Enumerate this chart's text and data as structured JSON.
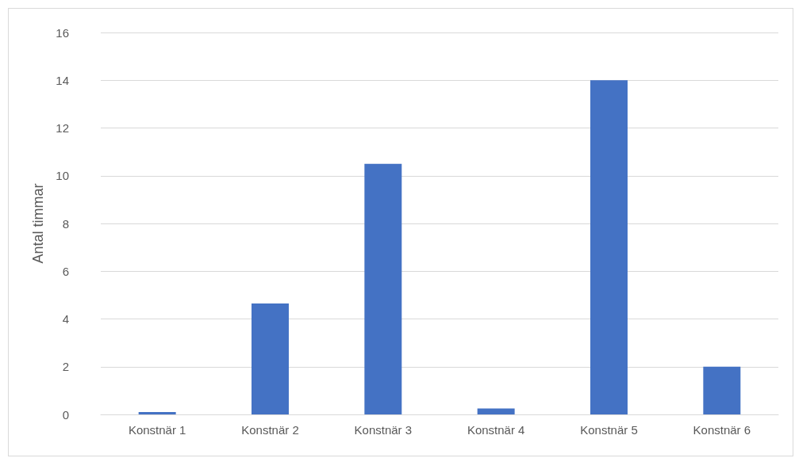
{
  "chart_data": {
    "type": "bar",
    "ylabel": "Antal timmar",
    "categories": [
      "Konstnär 1",
      "Konstnär 2",
      "Konstnär 3",
      "Konstnär 4",
      "Konstnär 5",
      "Konstnär 6"
    ],
    "values": [
      0.1,
      4.65,
      10.5,
      0.25,
      14,
      2
    ],
    "color": "#4472c4",
    "ylim": [
      0,
      16
    ],
    "yticks": [
      0,
      2,
      4,
      6,
      8,
      10,
      12,
      14,
      16
    ],
    "grid": "y"
  }
}
